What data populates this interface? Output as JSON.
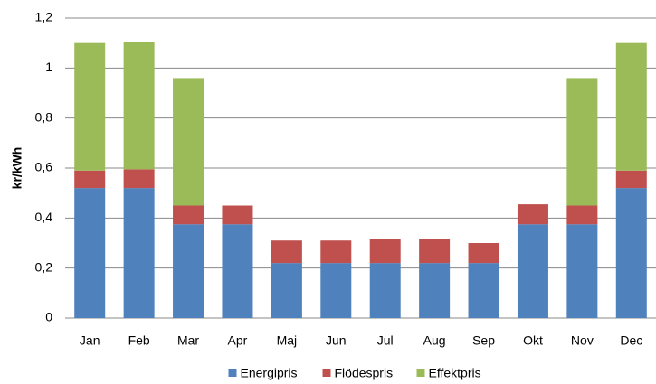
{
  "chart_data": {
    "type": "stacked_bar",
    "ylabel": "kr/kWh",
    "categories": [
      "Jan",
      "Feb",
      "Mar",
      "Apr",
      "Maj",
      "Jun",
      "Jul",
      "Aug",
      "Sep",
      "Okt",
      "Nov",
      "Dec"
    ],
    "series": [
      {
        "name": "Energipris",
        "color": "#4f81bd",
        "values": [
          0.52,
          0.52,
          0.375,
          0.375,
          0.22,
          0.22,
          0.22,
          0.22,
          0.22,
          0.375,
          0.375,
          0.52
        ]
      },
      {
        "name": "Flödespris",
        "color": "#c0504d",
        "values": [
          0.07,
          0.075,
          0.075,
          0.075,
          0.09,
          0.09,
          0.095,
          0.095,
          0.08,
          0.08,
          0.075,
          0.07
        ]
      },
      {
        "name": "Effektpris",
        "color": "#9bbb59",
        "values": [
          0.51,
          0.51,
          0.51,
          0,
          0,
          0,
          0,
          0,
          0,
          0,
          0.51,
          0.51
        ]
      }
    ],
    "ylim": [
      0,
      1.2
    ],
    "yticks": [
      0,
      {
        "value": 0.2,
        "label": "0,2"
      },
      {
        "value": 0.4,
        "label": "0,4"
      },
      {
        "value": 0.6,
        "label": "0,6"
      },
      {
        "value": 0.8,
        "label": "0,8"
      },
      1,
      {
        "value": 1.2,
        "label": "1,2"
      }
    ],
    "grid": true,
    "legend": "bottom"
  }
}
